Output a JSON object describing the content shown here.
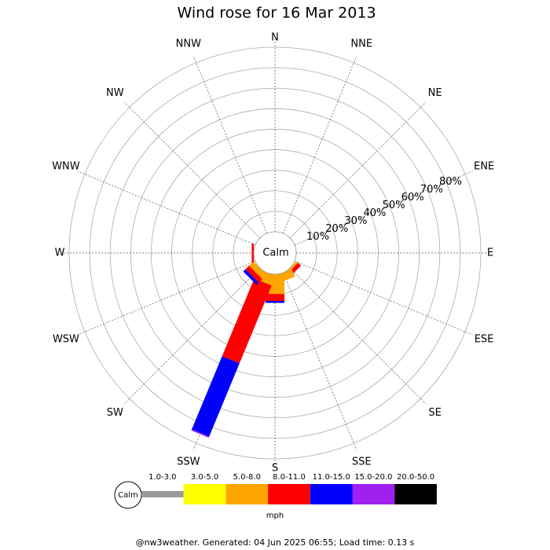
{
  "chart_data": {
    "type": "windrose",
    "title": "Wind rose for 16 Mar 2013",
    "directions": [
      "N",
      "NNE",
      "NE",
      "ENE",
      "E",
      "ESE",
      "SE",
      "SSE",
      "S",
      "SSW",
      "SW",
      "WSW",
      "W",
      "WNW",
      "NW",
      "NNW"
    ],
    "calm_label": "Calm",
    "rlim": [
      0,
      90
    ],
    "rticks": [
      {
        "value": 10,
        "label": "10%"
      },
      {
        "value": 20,
        "label": "20%"
      },
      {
        "value": 30,
        "label": "30%"
      },
      {
        "value": 40,
        "label": "40%"
      },
      {
        "value": 50,
        "label": "50%"
      },
      {
        "value": 60,
        "label": "60%"
      },
      {
        "value": 70,
        "label": "70%"
      },
      {
        "value": 80,
        "label": "80%"
      }
    ],
    "series": [
      {
        "name": "1.0-3.0",
        "color": "#999999",
        "values": [
          0,
          0,
          0,
          0,
          0,
          0,
          0,
          0,
          0,
          0,
          0,
          0,
          0,
          0,
          0,
          0
        ]
      },
      {
        "name": "3.0-5.0",
        "color": "#ffff00",
        "values": [
          0,
          0,
          0,
          0,
          0,
          0,
          0,
          0,
          0,
          0,
          0,
          0,
          0,
          0,
          0,
          0
        ]
      },
      {
        "name": "5.0-8.0",
        "color": "#ffa500",
        "values": [
          0,
          0,
          0,
          0,
          0,
          0,
          1,
          4,
          9.6,
          5,
          3,
          0,
          0,
          0,
          0,
          0
        ]
      },
      {
        "name": "8.0-11.0",
        "color": "#ff0000",
        "values": [
          0,
          0,
          0,
          0,
          0,
          0,
          2,
          0,
          3.4,
          41,
          2.5,
          0,
          1,
          0,
          0,
          0
        ]
      },
      {
        "name": "11.0-15.0",
        "color": "#0000ff",
        "values": [
          0,
          0,
          0,
          0,
          0,
          0,
          0,
          0,
          1,
          38.6,
          1.5,
          0,
          0,
          0,
          0,
          0
        ]
      },
      {
        "name": "15.0-20.0",
        "color": "#a020f0",
        "values": [
          0,
          0,
          0,
          0,
          0,
          0,
          0,
          0,
          0,
          0.6,
          0,
          0,
          0,
          0,
          0,
          0
        ]
      },
      {
        "name": "20.0-50.0",
        "color": "#000000",
        "values": [
          0,
          0,
          0,
          0,
          0,
          0,
          0,
          0,
          0,
          0,
          0,
          0,
          0,
          0,
          0,
          0
        ]
      }
    ],
    "legend_units": "mph",
    "footer": "@nw3weather. Generated: 04 Jun 2025 06:55; Load time: 0.13 s"
  }
}
